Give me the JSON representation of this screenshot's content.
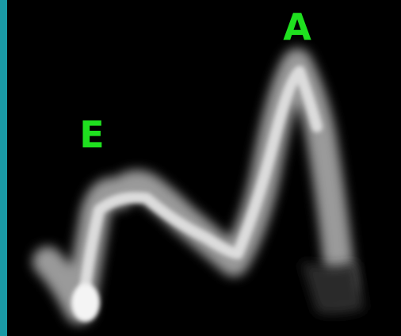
{
  "labels": {
    "e": "E",
    "a": "A"
  }
}
